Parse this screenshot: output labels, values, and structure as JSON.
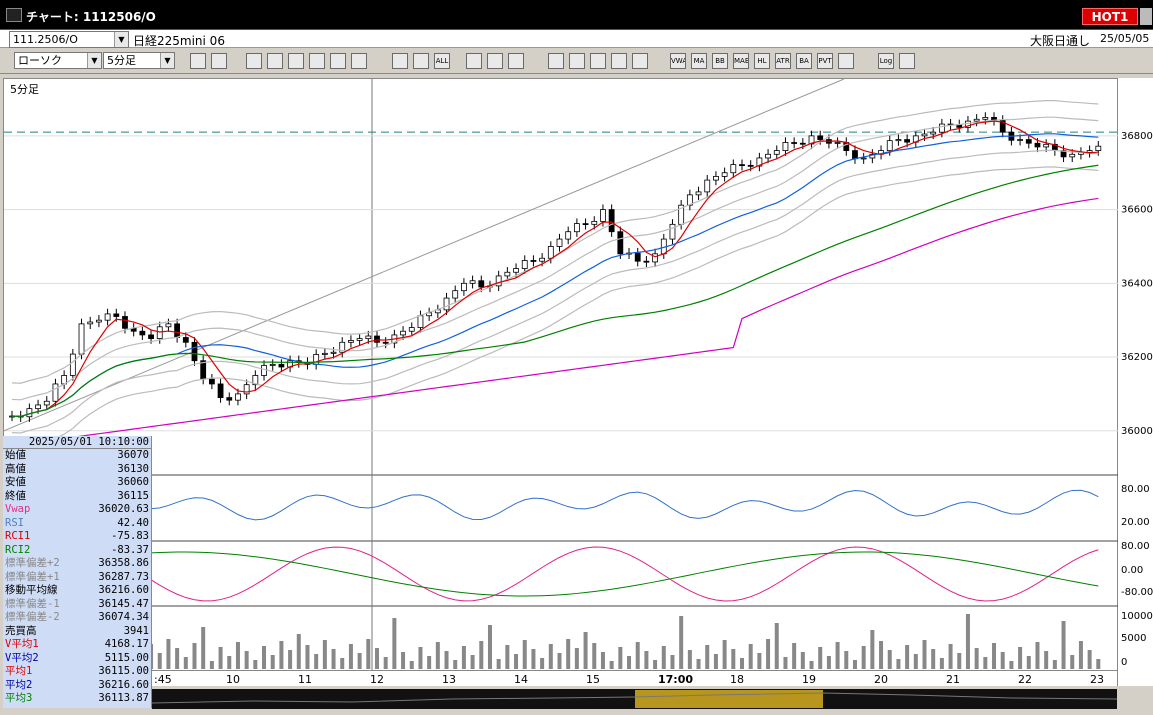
{
  "window": {
    "title": "チャート: 1112506/O",
    "hot_label": "HOT1"
  },
  "symbol_bar": {
    "code": "111.2506/O",
    "name": "日経225mini 06",
    "market": "大阪日通し",
    "date": "25/05/05"
  },
  "toolbar": {
    "chart_type": "ローソク",
    "period": "5分足",
    "icons_a": [
      "search-icon",
      "screen-icon"
    ],
    "icons_b": [
      "pencil-icon",
      "eraser-icon",
      "cursor-icon",
      "undo-icon",
      "page-icon",
      "trash-icon"
    ],
    "icons_c": [
      "candle-icon",
      "bar-icon",
      "all-label"
    ],
    "icons_d": [
      "settings-icon",
      "wrench-icon",
      "palette-icon"
    ],
    "icons_e": [
      "stamp-icon",
      "zoom-icon",
      "volume-icon",
      "crosshair-icon",
      "grid-icon"
    ],
    "icons_f": [
      "vwap-label",
      "ma-label",
      "bb-label",
      "mae-label",
      "hl-label",
      "atr-label",
      "ba-label",
      "pvt-label",
      "box-icon"
    ],
    "icons_g": [
      "log-label",
      "export-icon"
    ],
    "icon_text": {
      "all-label": "ALL",
      "vwap-label": "VWAP",
      "ma-label": "MA",
      "bb-label": "BB",
      "mae-label": "MAE",
      "hl-label": "HL",
      "atr-label": "ATR",
      "ba-label": "BA",
      "pvt-label": "PVT",
      "log-label": "Log"
    }
  },
  "main_panel": {
    "label": "5分足"
  },
  "y_axis": {
    "price_ticks": [
      "36800",
      "36600",
      "36400",
      "36200",
      "36000"
    ],
    "osc1_ticks": [
      "80.00",
      "20.00"
    ],
    "osc2_ticks": [
      "80.00",
      "0.00",
      "-80.00"
    ],
    "vol_ticks": [
      "10000",
      "5000",
      "0"
    ]
  },
  "x_axis": {
    "labels": [
      ":45",
      "10",
      "11",
      "12",
      "13",
      "14",
      "15",
      "17:00",
      "18",
      "19",
      "20",
      "21",
      "22",
      "23"
    ]
  },
  "info_panel": {
    "datetime": "2025/05/01 10:10:00",
    "rows": [
      {
        "k": "始値",
        "v": "36070",
        "c": "#000"
      },
      {
        "k": "高値",
        "v": "36130",
        "c": "#000"
      },
      {
        "k": "安値",
        "v": "36060",
        "c": "#000"
      },
      {
        "k": "終値",
        "v": "36115",
        "c": "#000"
      },
      {
        "k": "Vwap",
        "v": "36020.63",
        "c": "#e0308a"
      },
      {
        "k": "RSI",
        "v": "42.40",
        "c": "#5080c0"
      },
      {
        "k": "RCI1",
        "v": "-75.83",
        "c": "#d00"
      },
      {
        "k": "RCI2",
        "v": "-83.37",
        "c": "#008000"
      },
      {
        "k": "標準偏差+2",
        "v": "36358.86",
        "c": "#888"
      },
      {
        "k": "標準偏差+1",
        "v": "36287.73",
        "c": "#888"
      },
      {
        "k": "移動平均線",
        "v": "36216.60",
        "c": "#000"
      },
      {
        "k": "標準偏差-1",
        "v": "36145.47",
        "c": "#888"
      },
      {
        "k": "標準偏差-2",
        "v": "36074.34",
        "c": "#888"
      },
      {
        "k": "売買高",
        "v": "3941",
        "c": "#000"
      },
      {
        "k": "V平均1",
        "v": "4168.17",
        "c": "#d00"
      },
      {
        "k": "V平均2",
        "v": "5115.00",
        "c": "#00a"
      },
      {
        "k": "平均1",
        "v": "36115.00",
        "c": "#d00"
      },
      {
        "k": "平均2",
        "v": "36216.60",
        "c": "#00a"
      },
      {
        "k": "平均3",
        "v": "36113.87",
        "c": "#008000"
      }
    ]
  },
  "chart_data": {
    "type": "candlestick",
    "ylim": [
      35880,
      36900
    ],
    "y_ticks": [
      36000,
      36200,
      36400,
      36600,
      36800
    ],
    "reference_line": 36810,
    "x_labels": [
      ":45",
      "10",
      "11",
      "12",
      "13",
      "14",
      "15",
      "17:00",
      "18",
      "19",
      "20",
      "21",
      "22",
      "23"
    ],
    "close_series": [
      36040,
      36060,
      36080,
      36150,
      36290,
      36300,
      36310,
      36270,
      36250,
      36290,
      36240,
      36140,
      36090,
      36100,
      36150,
      36180,
      36190,
      36180,
      36210,
      36240,
      36250,
      36240,
      36260,
      36280,
      36320,
      36360,
      36400,
      36390,
      36420,
      36440,
      36460,
      36500,
      36540,
      36560,
      36600,
      36480,
      36460,
      36480,
      36560,
      36640,
      36680,
      36700,
      36720,
      36740,
      36760,
      36780,
      36800,
      36780,
      36760,
      36740,
      36760,
      36790,
      36800,
      36810,
      36830,
      36840,
      36850,
      36810,
      36790,
      36770,
      36760,
      36750,
      36760
    ]
  }
}
